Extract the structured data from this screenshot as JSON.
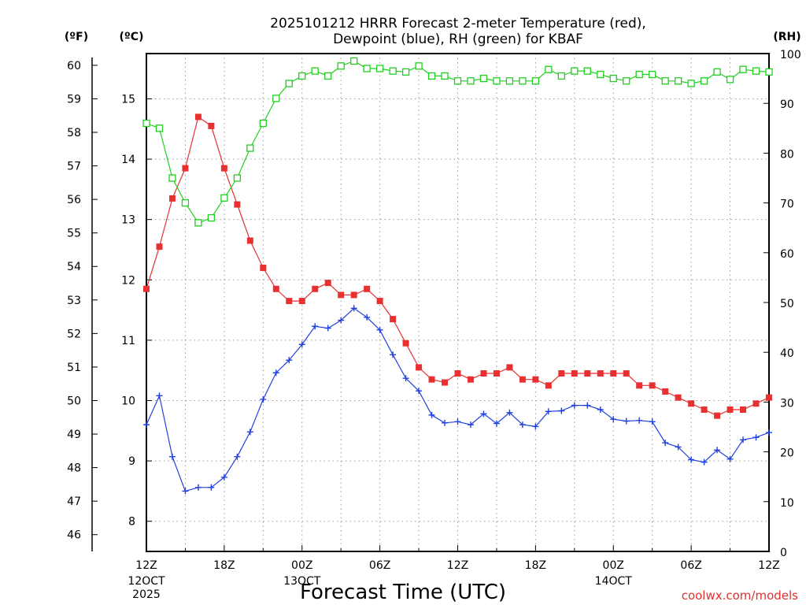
{
  "chart_data": {
    "type": "line",
    "title_line1": "2025101212 HRRR Forecast 2-meter Temperature (red),",
    "title_line2": "Dewpoint (blue), RH (green) for KBAF",
    "xlabel": "Forecast Time (UTC)",
    "credit": "coolwx.com/models",
    "unit_labels": {
      "fahrenheit": "(ºF)",
      "celsius": "(ºC)",
      "rh": "(RH)"
    },
    "x_hours": {
      "start_hour_utc": 12,
      "step_hours": 1,
      "count": 49
    },
    "x_ticks": [
      {
        "label": "12Z",
        "sub": [
          "12OCT",
          "2025"
        ],
        "hour": 0
      },
      {
        "label": "18Z",
        "sub": [],
        "hour": 6
      },
      {
        "label": "00Z",
        "sub": [
          "13OCT"
        ],
        "hour": 12
      },
      {
        "label": "06Z",
        "sub": [],
        "hour": 18
      },
      {
        "label": "12Z",
        "sub": [],
        "hour": 24
      },
      {
        "label": "18Z",
        "sub": [],
        "hour": 30
      },
      {
        "label": "00Z",
        "sub": [
          "14OCT"
        ],
        "hour": 36
      },
      {
        "label": "06Z",
        "sub": [],
        "hour": 42
      },
      {
        "label": "12Z",
        "sub": [],
        "hour": 48
      }
    ],
    "celsius_axis": {
      "ylim": [
        7.5,
        15.75
      ],
      "ticks": [
        8,
        9,
        10,
        11,
        12,
        13,
        14,
        15
      ]
    },
    "fahrenheit_axis": {
      "ticks": [
        46,
        47,
        48,
        49,
        50,
        51,
        52,
        53,
        54,
        55,
        56,
        57,
        58,
        59,
        60
      ]
    },
    "rh_axis": {
      "ylim": [
        0,
        100
      ],
      "ticks": [
        0,
        10,
        20,
        30,
        40,
        50,
        60,
        70,
        80,
        90,
        100
      ]
    },
    "grid": true,
    "series": [
      {
        "name": "Temperature",
        "axis": "celsius",
        "color": "#e83030",
        "marker": "filled-square",
        "values": [
          11.85,
          12.55,
          13.35,
          13.85,
          14.7,
          14.55,
          13.85,
          13.25,
          12.65,
          12.2,
          11.85,
          11.65,
          11.65,
          11.85,
          11.95,
          11.75,
          11.75,
          11.85,
          11.65,
          11.35,
          10.95,
          10.55,
          10.35,
          10.3,
          10.45,
          10.35,
          10.45,
          10.45,
          10.55,
          10.35,
          10.35,
          10.25,
          10.45,
          10.45,
          10.45,
          10.45,
          10.45,
          10.45,
          10.25,
          10.25,
          10.15,
          10.05,
          9.95,
          9.85,
          9.75,
          9.85,
          9.85,
          9.95,
          10.05
        ]
      },
      {
        "name": "Dewpoint",
        "axis": "celsius",
        "color": "#2040e0",
        "marker": "plus",
        "values": [
          9.6,
          10.08,
          9.07,
          8.5,
          8.56,
          8.56,
          8.73,
          9.07,
          9.48,
          10.02,
          10.46,
          10.67,
          10.93,
          11.23,
          11.2,
          11.33,
          11.53,
          11.38,
          11.17,
          10.76,
          10.37,
          10.16,
          9.76,
          9.63,
          9.65,
          9.6,
          9.78,
          9.62,
          9.8,
          9.6,
          9.57,
          9.82,
          9.83,
          9.92,
          9.92,
          9.85,
          9.69,
          9.66,
          9.67,
          9.65,
          9.3,
          9.23,
          9.02,
          8.98,
          9.18,
          9.03,
          9.35,
          9.39,
          9.47
        ]
      },
      {
        "name": "RH",
        "axis": "rh",
        "color": "#20d020",
        "marker": "open-square",
        "values": [
          86,
          85,
          75,
          70,
          66,
          67,
          71,
          75,
          81,
          86,
          91,
          94,
          95.5,
          96.5,
          95.5,
          97.5,
          98.5,
          97,
          97,
          96.5,
          96.3,
          97.5,
          95.5,
          95.5,
          94.5,
          94.5,
          95,
          94.5,
          94.5,
          94.5,
          94.5,
          96.8,
          95.5,
          96.5,
          96.5,
          95.8,
          95,
          94.5,
          95.8,
          95.8,
          94.5,
          94.5,
          94,
          94.5,
          96.3,
          94.8,
          96.8,
          96.5,
          96.3
        ]
      }
    ]
  }
}
